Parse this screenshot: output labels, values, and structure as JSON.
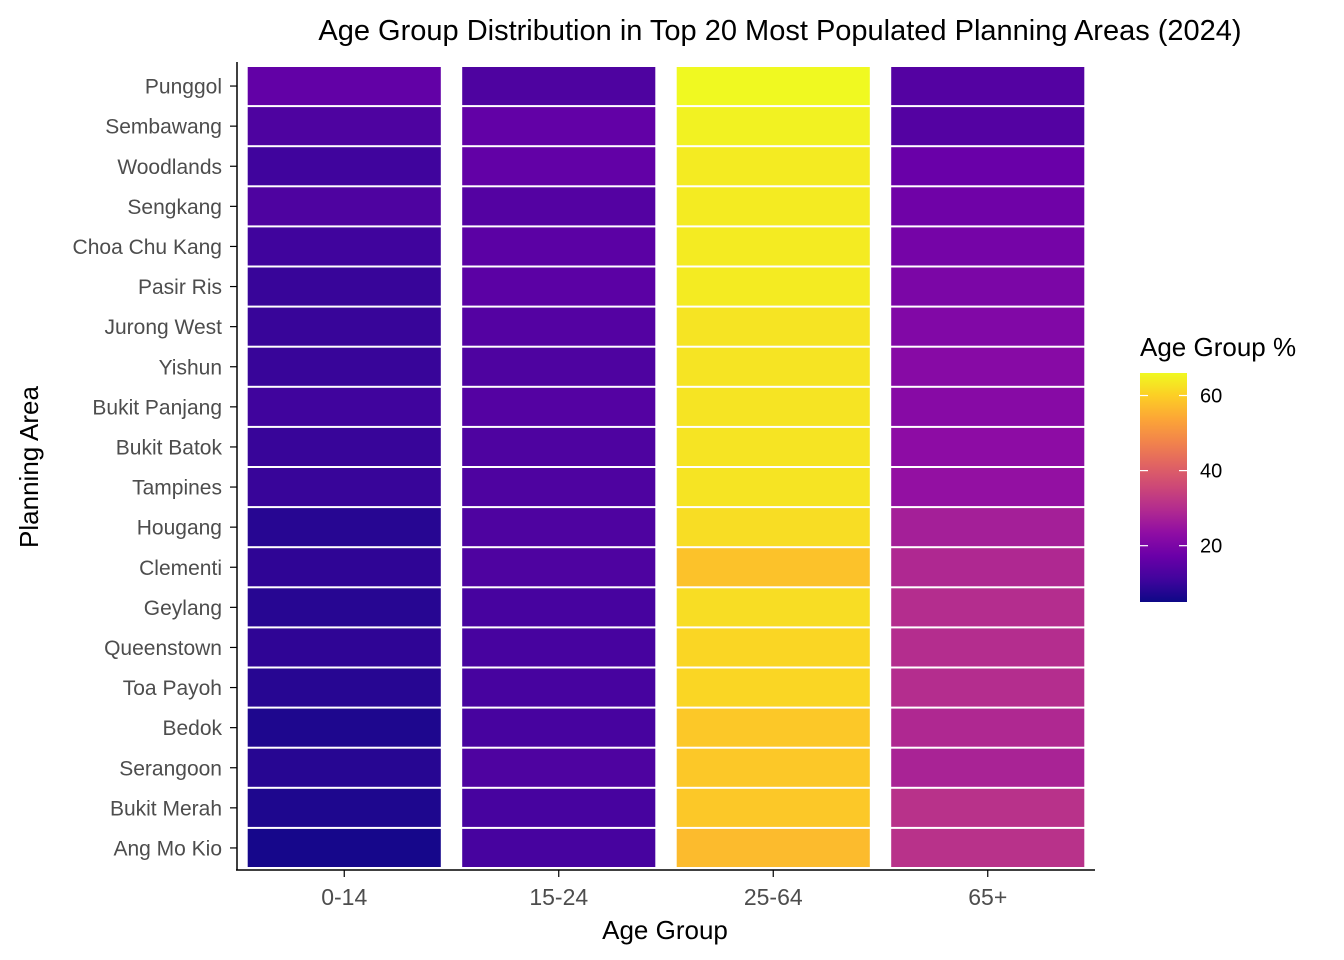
{
  "chart_data": {
    "type": "heatmap",
    "title": "Age Group Distribution in Top 20 Most Populated Planning Areas (2024)",
    "xlabel": "Age Group",
    "ylabel": "Planning Area",
    "x_categories": [
      "0-14",
      "15-24",
      "25-64",
      "65+"
    ],
    "y_categories": [
      "Punggol",
      "Sembawang",
      "Woodlands",
      "Sengkang",
      "Choa Chu Kang",
      "Pasir Ris",
      "Jurong West",
      "Yishun",
      "Bukit Panjang",
      "Bukit Batok",
      "Tampines",
      "Hougang",
      "Clementi",
      "Geylang",
      "Queenstown",
      "Toa Payoh",
      "Bedok",
      "Serangoon",
      "Bukit Merah",
      "Ang Mo Kio"
    ],
    "values": [
      [
        16,
        13,
        66,
        14
      ],
      [
        13,
        16,
        65,
        14
      ],
      [
        11,
        16,
        64,
        17
      ],
      [
        13,
        14,
        64,
        18
      ],
      [
        11,
        15,
        64,
        19
      ],
      [
        10,
        15,
        64,
        20
      ],
      [
        10,
        14,
        63,
        21
      ],
      [
        10,
        13,
        63,
        22
      ],
      [
        11,
        14,
        63,
        22
      ],
      [
        10,
        13,
        63,
        23
      ],
      [
        10,
        13,
        63,
        24
      ],
      [
        8,
        13,
        62,
        27
      ],
      [
        9,
        13,
        58,
        29
      ],
      [
        8,
        12,
        62,
        30
      ],
      [
        9,
        12,
        61,
        30
      ],
      [
        8,
        12,
        61,
        30
      ],
      [
        7,
        12,
        59,
        29
      ],
      [
        8,
        13,
        59,
        28
      ],
      [
        7,
        12,
        59,
        31
      ],
      [
        6,
        12,
        57,
        31
      ]
    ],
    "legend": {
      "title": "Age Group %",
      "ticks": [
        20,
        40,
        60
      ],
      "range": [
        5,
        66
      ],
      "placement": "right",
      "colorscale": "plasma"
    },
    "grid": false,
    "colors": {
      "cell_border": "#ffffff",
      "axis": "#000000",
      "tick_label": "#4d4d4d",
      "scale_stops": [
        "#0d0887",
        "#41049d",
        "#6a00a8",
        "#8f0da4",
        "#b12a90",
        "#cc4778",
        "#e16462",
        "#f2844b",
        "#fca636",
        "#fcce25",
        "#f0f921"
      ]
    }
  }
}
